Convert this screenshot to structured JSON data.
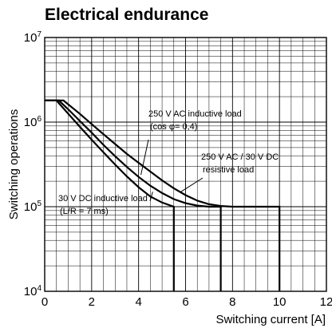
{
  "chart_data": {
    "type": "line",
    "title": "Electrical endurance",
    "xlabel": "Switching current [A]",
    "ylabel": "Switching operations",
    "xlim": [
      0,
      12
    ],
    "ylim": [
      10000,
      10000000
    ],
    "yscale": "log",
    "grid": true,
    "x_ticks": [
      "0",
      "2",
      "4",
      "6",
      "8",
      "10",
      "12"
    ],
    "y_ticks": [
      {
        "base": "10",
        "exp": "4"
      },
      {
        "base": "10",
        "exp": "5"
      },
      {
        "base": "10",
        "exp": "6"
      },
      {
        "base": "10",
        "exp": "7"
      }
    ],
    "series": [
      {
        "name": "30 V DC inductive load",
        "sub": "(L/R = 7 ms)",
        "x": [
          0,
          0.5,
          1.0,
          1.5,
          2.0,
          2.5,
          3.0,
          3.5,
          4.0,
          4.5,
          5.0,
          5.5,
          5.5
        ],
        "y": [
          1800000,
          1800000,
          1260000,
          880000,
          620000,
          440000,
          315000,
          228000,
          170000,
          132000,
          112000,
          100000,
          10000
        ]
      },
      {
        "name": "250 V AC inductive load",
        "sub": "(cos φ= 0,4)",
        "x": [
          0,
          0.6,
          1.0,
          1.5,
          2.0,
          2.5,
          3.0,
          3.5,
          4.0,
          4.5,
          5.0,
          5.5,
          6.0,
          6.5,
          7.0,
          7.5,
          7.5
        ],
        "y": [
          1800000,
          1800000,
          1420000,
          1030000,
          750000,
          540000,
          395000,
          295000,
          225000,
          177000,
          145000,
          123000,
          110000,
          103000,
          100000,
          100000,
          10000
        ]
      },
      {
        "name": "250 V AC / 30 V DC",
        "sub": "resistive load",
        "x": [
          0,
          0.8,
          1.5,
          2.0,
          2.5,
          3.0,
          3.5,
          4.0,
          4.5,
          5.0,
          5.5,
          6.0,
          6.5,
          7.0,
          7.5,
          8.0,
          9.0,
          10.0,
          10.0
        ],
        "y": [
          1800000,
          1800000,
          1250000,
          950000,
          720000,
          550000,
          420000,
          330000,
          260000,
          205000,
          165000,
          137000,
          118000,
          107000,
          102000,
          100000,
          100000,
          100000,
          10000
        ]
      }
    ]
  }
}
